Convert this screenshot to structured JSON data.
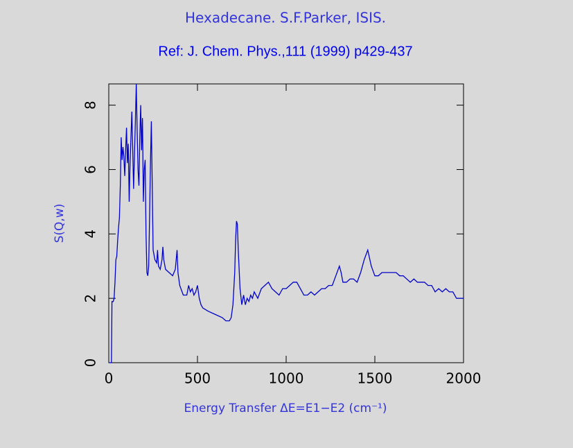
{
  "chart_data": {
    "type": "line",
    "title": "Hexadecane. S.F.Parker, ISIS.",
    "subtitle": "Ref: J. Chem. Phys.,111 (1999) p429-437",
    "x_label": "Energy Transfer ΔE=E1−E2 (cm⁻¹)",
    "y_label": "S(Q,w)",
    "xlim": [
      0,
      2000
    ],
    "ylim": [
      0,
      8.66
    ],
    "xticks": [
      0,
      500,
      1000,
      1500,
      2000
    ],
    "yticks": [
      0,
      2,
      4,
      6,
      8
    ],
    "x": [
      0,
      10,
      15,
      18,
      25,
      30,
      35,
      40,
      45,
      50,
      55,
      60,
      65,
      70,
      75,
      80,
      85,
      90,
      95,
      100,
      105,
      110,
      115,
      120,
      125,
      130,
      135,
      140,
      145,
      150,
      155,
      160,
      165,
      170,
      175,
      180,
      185,
      190,
      195,
      200,
      205,
      210,
      215,
      220,
      225,
      230,
      235,
      240,
      245,
      250,
      260,
      270,
      275,
      280,
      290,
      300,
      305,
      310,
      320,
      340,
      360,
      375,
      385,
      390,
      400,
      420,
      440,
      450,
      460,
      470,
      480,
      490,
      500,
      510,
      520,
      530,
      560,
      600,
      640,
      660,
      680,
      690,
      700,
      710,
      715,
      720,
      725,
      730,
      740,
      750,
      760,
      770,
      780,
      790,
      800,
      810,
      820,
      840,
      860,
      880,
      900,
      920,
      940,
      960,
      980,
      1000,
      1020,
      1040,
      1060,
      1080,
      1100,
      1120,
      1140,
      1160,
      1180,
      1200,
      1220,
      1240,
      1260,
      1280,
      1300,
      1310,
      1320,
      1340,
      1360,
      1380,
      1400,
      1420,
      1440,
      1460,
      1480,
      1500,
      1520,
      1540,
      1560,
      1580,
      1600,
      1620,
      1640,
      1660,
      1680,
      1700,
      1720,
      1740,
      1760,
      1780,
      1800,
      1820,
      1840,
      1860,
      1880,
      1900,
      1920,
      1940,
      1960,
      1980,
      2000
    ],
    "series": [
      {
        "name": "S(Q,w)",
        "color": "#0000cc",
        "values": [
          0,
          0,
          0,
          1.9,
          1.9,
          2.0,
          2.5,
          3.2,
          3.3,
          3.8,
          4.2,
          4.5,
          5.5,
          7.0,
          6.3,
          6.7,
          6.4,
          5.8,
          6.6,
          7.3,
          6.2,
          6.8,
          5.0,
          6.2,
          7.0,
          7.8,
          6.6,
          5.4,
          6.5,
          7.5,
          8.66,
          7.2,
          6.0,
          5.5,
          7.0,
          8.0,
          6.6,
          7.6,
          5.0,
          6.0,
          6.3,
          4.0,
          2.8,
          2.7,
          3.0,
          4.5,
          6.2,
          7.5,
          5.5,
          3.5,
          3.2,
          3.1,
          3.5,
          3.0,
          2.9,
          3.2,
          3.6,
          3.2,
          2.9,
          2.8,
          2.7,
          2.9,
          3.5,
          2.8,
          2.4,
          2.1,
          2.1,
          2.4,
          2.2,
          2.3,
          2.1,
          2.2,
          2.4,
          2.0,
          1.8,
          1.7,
          1.6,
          1.5,
          1.4,
          1.3,
          1.3,
          1.4,
          1.8,
          2.8,
          3.8,
          4.4,
          4.3,
          3.5,
          2.3,
          1.8,
          2.1,
          1.8,
          2.0,
          1.9,
          2.1,
          2.0,
          2.2,
          2.0,
          2.3,
          2.4,
          2.5,
          2.3,
          2.2,
          2.1,
          2.3,
          2.3,
          2.4,
          2.5,
          2.5,
          2.3,
          2.1,
          2.1,
          2.2,
          2.1,
          2.2,
          2.3,
          2.3,
          2.4,
          2.4,
          2.7,
          3.0,
          2.8,
          2.5,
          2.5,
          2.6,
          2.6,
          2.5,
          2.8,
          3.2,
          3.5,
          3.0,
          2.7,
          2.7,
          2.8,
          2.8,
          2.8,
          2.8,
          2.8,
          2.7,
          2.7,
          2.6,
          2.5,
          2.6,
          2.5,
          2.5,
          2.5,
          2.4,
          2.4,
          2.2,
          2.3,
          2.2,
          2.3,
          2.2,
          2.2,
          2.0,
          2.0,
          2.0
        ]
      }
    ]
  }
}
